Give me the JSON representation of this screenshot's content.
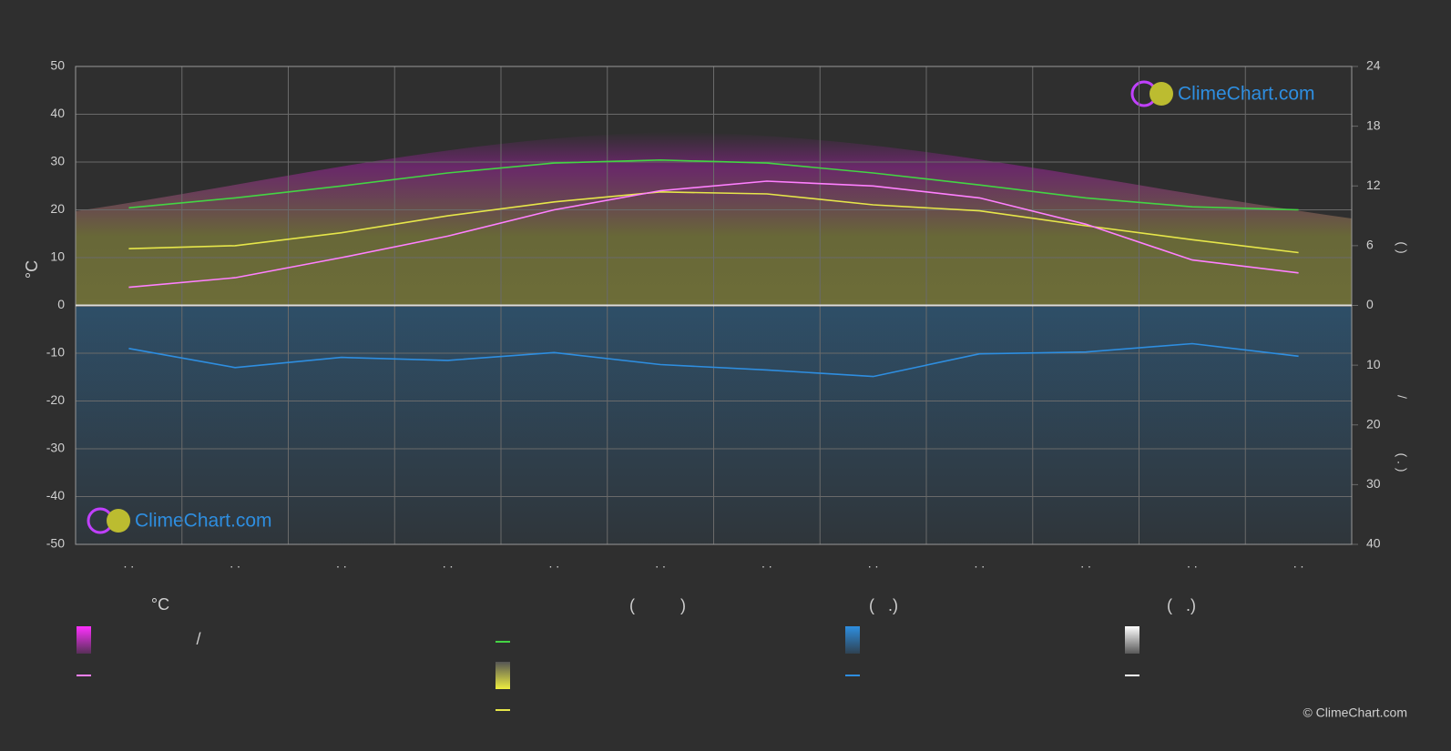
{
  "chart_data": {
    "type": "line",
    "y_label": "°C",
    "categories": [
      ". .",
      ". .",
      ". .",
      ". .",
      ". .",
      ". .",
      ". .",
      ". .",
      ". .",
      ". .",
      ". .",
      ". ."
    ],
    "ylim": [
      -50,
      50
    ],
    "yticks": [
      -50,
      -40,
      -30,
      -20,
      -10,
      0,
      10,
      20,
      30,
      40,
      50
    ],
    "hours_axis": {
      "lim": [
        0,
        24
      ],
      "ticks": [
        0,
        6,
        12,
        18,
        24
      ]
    },
    "rain_axis": {
      "lim": [
        0,
        40
      ],
      "ticks": [
        10,
        20,
        30,
        40
      ]
    },
    "right_axis_labels": [
      "(     )",
      "/",
      "( . )"
    ],
    "grid": true,
    "series": [
      {
        "color": "#44d444",
        "axis": "hours",
        "values": [
          9.8,
          10.8,
          12.0,
          13.3,
          14.3,
          14.6,
          14.3,
          13.3,
          12.1,
          10.8,
          9.9,
          9.6
        ]
      },
      {
        "color": "#e6e64a",
        "axis": "hours",
        "values": [
          5.7,
          6.0,
          7.3,
          9.0,
          10.4,
          11.4,
          11.2,
          10.1,
          9.5,
          8.0,
          6.6,
          5.3
        ]
      },
      {
        "color": "#ff80ff",
        "axis": "y",
        "values": [
          3.8,
          5.8,
          10.0,
          14.5,
          20.0,
          24.0,
          26.0,
          25.0,
          22.5,
          17.0,
          9.5,
          6.8
        ]
      },
      {
        "color": "#2e8ee0",
        "axis": "rain",
        "values": [
          7.2,
          10.4,
          8.7,
          9.2,
          7.9,
          9.9,
          10.8,
          11.9,
          8.1,
          7.8,
          6.4,
          8.5
        ]
      }
    ],
    "legend_headings": [
      "°C",
      "(          )",
      "(   .)",
      "(   .)"
    ],
    "legend_slash": "/",
    "logo_text": "ClimeChart.com",
    "copyright": "© ClimeChart.com"
  }
}
